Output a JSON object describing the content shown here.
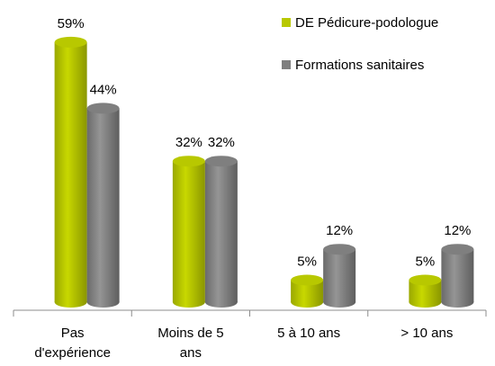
{
  "chart_data": {
    "type": "bar",
    "categories": [
      "Pas d'expérience",
      "Moins de 5 ans",
      "5 à 10 ans",
      "> 10 ans"
    ],
    "series": [
      {
        "name": "DE Pédicure-podologue",
        "color": "#b8c800",
        "values": [
          59,
          32,
          5,
          5
        ],
        "value_labels": [
          "59%",
          "32%",
          "5%",
          "5%"
        ]
      },
      {
        "name": "Formations sanitaires",
        "color": "#7f7f7f",
        "values": [
          44,
          32,
          12,
          12
        ],
        "value_labels": [
          "44%",
          "32%",
          "12%",
          "12%"
        ]
      }
    ],
    "legend": "top-right"
  }
}
